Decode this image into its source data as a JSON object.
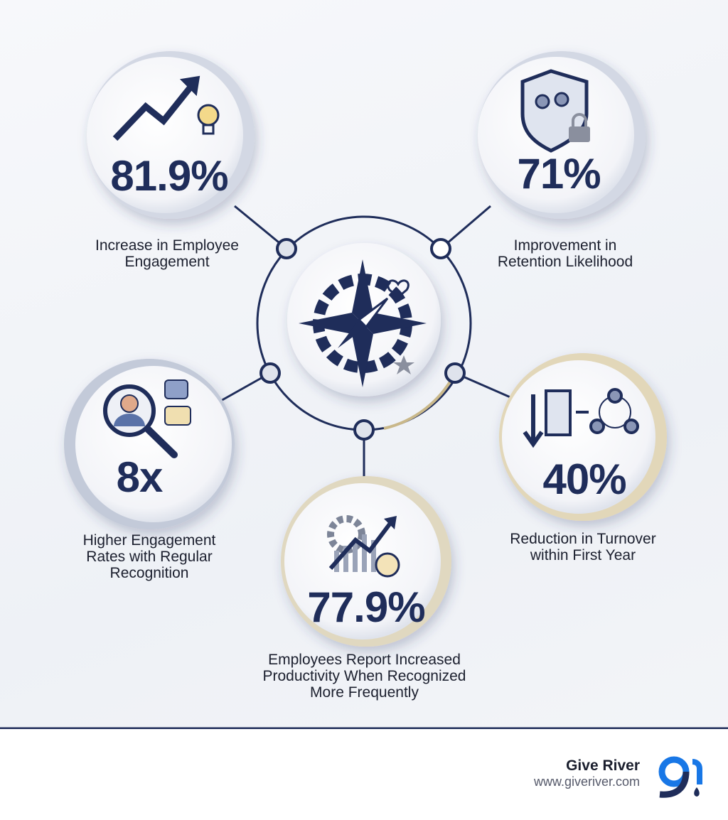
{
  "stats": [
    {
      "value": "81.9%",
      "label": "Increase in Employee Engagement"
    },
    {
      "value": "71%",
      "label": "Improvement in Retention Likelihood"
    },
    {
      "value": "8x",
      "label": "Higher Engagement Rates with Regular Recognition"
    },
    {
      "value": "40%",
      "label": "Reduction in Turnover within First Year"
    },
    {
      "value": "77.9%",
      "label": "Employees Report Increased Productivity When Recognized More Frequently"
    }
  ],
  "footer": {
    "brand": "Give River",
    "url": "www.giveriver.com"
  }
}
